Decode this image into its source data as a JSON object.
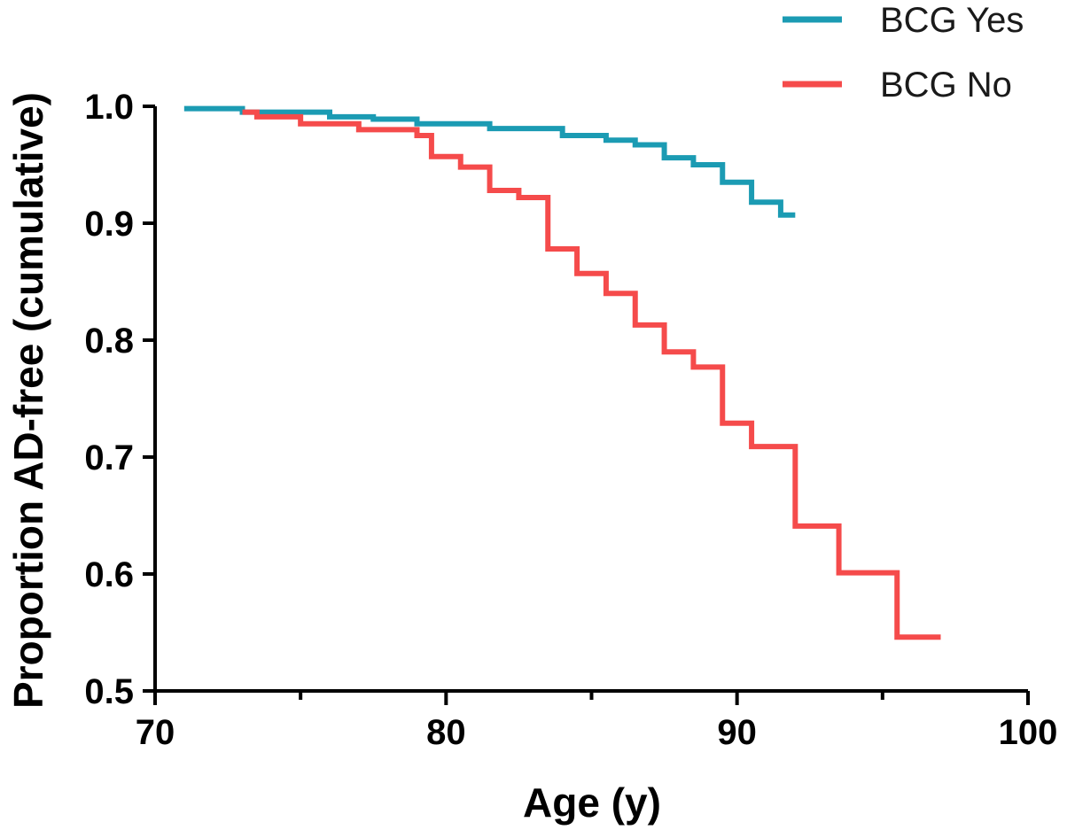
{
  "chart_data": {
    "type": "line",
    "title": "",
    "xlabel": "Age (y)",
    "ylabel": "Proportion AD-free (cumulative)",
    "xlim": [
      70,
      100
    ],
    "ylim": [
      0.5,
      1.0
    ],
    "x_ticks": [
      70,
      80,
      90,
      100
    ],
    "x_ticks_labels": [
      "70",
      "80",
      "90",
      "100"
    ],
    "x_minor_ticks": [
      75,
      85,
      95
    ],
    "y_ticks": [
      0.5,
      0.6,
      0.7,
      0.8,
      0.9,
      1.0
    ],
    "y_ticks_labels": [
      "0.5",
      "0.6",
      "0.7",
      "0.8",
      "0.9",
      "1.0"
    ],
    "grid": false,
    "legend_position": "top-right",
    "step": true,
    "series": [
      {
        "name": "BCG Yes",
        "color": "#1b9bb3",
        "x": [
          71.0,
          73.0,
          76.0,
          77.5,
          79.0,
          81.5,
          84.0,
          85.5,
          86.5,
          87.5,
          88.5,
          89.5,
          90.5,
          91.5,
          92.0
        ],
        "y": [
          0.998,
          0.995,
          0.991,
          0.989,
          0.985,
          0.981,
          0.975,
          0.971,
          0.967,
          0.956,
          0.95,
          0.935,
          0.918,
          0.907,
          0.907
        ]
      },
      {
        "name": "BCG No",
        "color": "#f54b4b",
        "x": [
          73.0,
          73.5,
          75.0,
          77.0,
          79.0,
          79.5,
          80.5,
          81.5,
          82.5,
          83.5,
          84.5,
          85.5,
          86.5,
          87.5,
          88.5,
          89.5,
          90.5,
          92.0,
          93.5,
          95.5,
          97.0
        ],
        "y": [
          0.995,
          0.991,
          0.985,
          0.98,
          0.975,
          0.957,
          0.948,
          0.928,
          0.922,
          0.878,
          0.857,
          0.84,
          0.813,
          0.79,
          0.777,
          0.729,
          0.709,
          0.641,
          0.601,
          0.546,
          0.546
        ]
      }
    ]
  }
}
